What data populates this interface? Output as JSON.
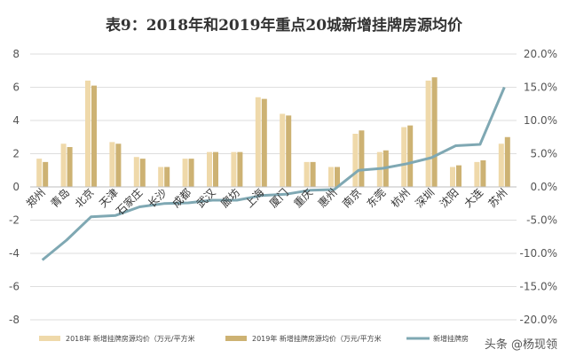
{
  "chart_data": {
    "type": "bar",
    "title": "表9：2018年和2019年重点20城新增挂牌房源均价",
    "categories": [
      "郑州",
      "青岛",
      "北京",
      "天津",
      "石家庄",
      "长沙",
      "成都",
      "武汉",
      "廊坊",
      "上海",
      "厦门",
      "重庆",
      "惠州",
      "南京",
      "东莞",
      "杭州",
      "深圳",
      "沈阳",
      "大连",
      "苏州"
    ],
    "series": [
      {
        "name": "2018年 新增挂牌房源均价（万元/平方米",
        "type": "bar",
        "axis": "left",
        "color": "#efd9aa",
        "values": [
          1.7,
          2.6,
          6.4,
          2.7,
          1.8,
          1.2,
          1.7,
          2.1,
          2.1,
          5.4,
          4.4,
          1.5,
          1.2,
          3.2,
          2.1,
          3.6,
          6.4,
          1.2,
          1.5,
          2.6
        ]
      },
      {
        "name": "2019年 新增挂牌房源均价（万元/平方米",
        "type": "bar",
        "axis": "left",
        "color": "#cdb273",
        "values": [
          1.5,
          2.4,
          6.1,
          2.6,
          1.7,
          1.2,
          1.7,
          2.1,
          2.1,
          5.3,
          4.3,
          1.5,
          1.2,
          3.4,
          2.2,
          3.7,
          6.6,
          1.3,
          1.6,
          3.0
        ]
      },
      {
        "name": "新增挂牌房",
        "type": "line",
        "axis": "right",
        "color": "#7fa8b3",
        "values": [
          -11.0,
          -8.0,
          -4.5,
          -4.3,
          -3.0,
          -2.5,
          -2.4,
          -2.0,
          -2.0,
          -1.3,
          -1.1,
          -0.5,
          -0.4,
          2.5,
          2.8,
          3.5,
          4.4,
          6.2,
          6.4,
          15.0
        ]
      }
    ],
    "y_left": {
      "min": -8,
      "max": 8,
      "ticks": [
        -8,
        -6,
        -4,
        -2,
        0,
        2,
        4,
        6,
        8
      ]
    },
    "y_right": {
      "min": -20,
      "max": 20,
      "ticks": [
        -20,
        -15,
        -10,
        -5,
        0,
        5,
        10,
        15,
        20
      ],
      "tick_labels": [
        "-20.0%",
        "-15.0%",
        "-10.0%",
        "-5.0%",
        "0.0%",
        "5.0%",
        "10.0%",
        "15.0%",
        "20.0%"
      ]
    },
    "grid": true,
    "legend_position": "bottom"
  },
  "watermark": "头条 @杨现领"
}
